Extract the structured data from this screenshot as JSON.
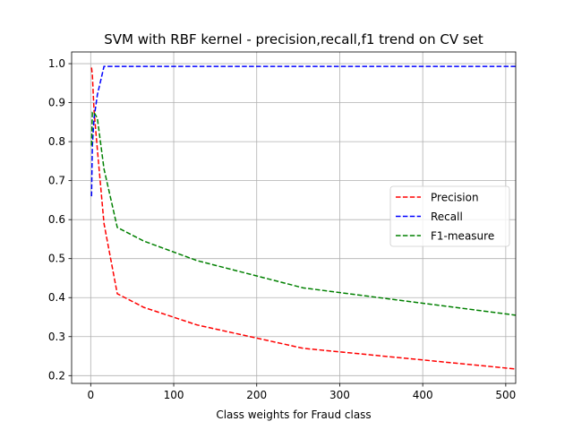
{
  "chart_data": {
    "type": "line",
    "title": "SVM with RBF kernel - precision,recall,f1 trend on CV set",
    "xlabel": "Class weights for Fraud class",
    "ylabel": "",
    "xlim": [
      -23,
      512
    ],
    "ylim": [
      0.18,
      1.03
    ],
    "grid": true,
    "legend_position": "center-right",
    "x_ticks": [
      0,
      100,
      200,
      300,
      400,
      500
    ],
    "y_ticks": [
      0.2,
      0.3,
      0.4,
      0.5,
      0.6,
      0.7,
      0.8,
      0.9,
      1.0
    ],
    "x_tick_labels": [
      "0",
      "100",
      "200",
      "300",
      "400",
      "500"
    ],
    "y_tick_labels": [
      "0.2",
      "0.3",
      "0.4",
      "0.5",
      "0.6",
      "0.7",
      "0.8",
      "0.9",
      "1.0"
    ],
    "x": [
      1,
      2,
      4,
      8,
      16,
      32,
      64,
      128,
      256,
      512
    ],
    "series": [
      {
        "name": "Precision",
        "color": "#ff0000",
        "values": [
          0.99,
          0.97,
          0.88,
          0.78,
          0.59,
          0.41,
          0.375,
          0.33,
          0.27,
          0.217
        ]
      },
      {
        "name": "Recall",
        "color": "#0000ff",
        "values": [
          0.66,
          0.79,
          0.86,
          0.92,
          0.993,
          0.993,
          0.993,
          0.993,
          0.993,
          0.993
        ]
      },
      {
        "name": "F1-measure",
        "color": "#008000",
        "values": [
          0.79,
          0.875,
          0.875,
          0.86,
          0.73,
          0.58,
          0.545,
          0.495,
          0.425,
          0.355
        ]
      }
    ]
  }
}
